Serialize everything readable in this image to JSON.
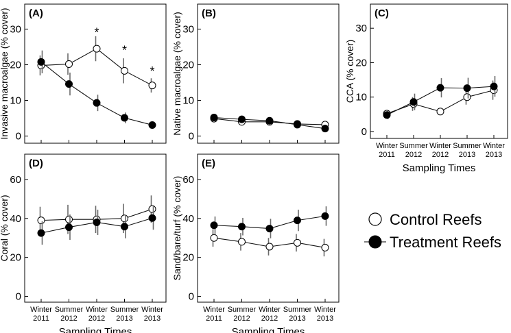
{
  "chart_data": [
    {
      "panel": "(A)",
      "type": "line",
      "ylabel": "Invasive macroalgae (% cover)",
      "xlabel": "",
      "ylim": [
        -2,
        37
      ],
      "yticks": [
        0,
        10,
        20,
        30
      ],
      "categories": [
        [
          "Winter",
          "2011"
        ],
        [
          "Summer",
          "2012"
        ],
        [
          "Winter",
          "2012"
        ],
        [
          "Summer",
          "2013"
        ],
        [
          "Winter",
          "2013"
        ]
      ],
      "show_categories": false,
      "series": [
        {
          "name": "Control Reefs",
          "marker": "open",
          "values": [
            19.8,
            20.2,
            24.5,
            18.3,
            14.2
          ],
          "errors": [
            2.8,
            3.0,
            3.5,
            3.5,
            2.0
          ]
        },
        {
          "name": "Treatment Reefs",
          "marker": "filled",
          "values": [
            20.8,
            14.6,
            9.3,
            5.1,
            3.1
          ],
          "errors": [
            3.2,
            3.2,
            2.3,
            1.5,
            0.9
          ]
        }
      ],
      "annotations": [
        {
          "text": "*",
          "category_index": 2,
          "y": 29.0
        },
        {
          "text": "*",
          "category_index": 3,
          "y": 24.0
        },
        {
          "text": "*",
          "category_index": 4,
          "y": 18.2
        }
      ]
    },
    {
      "panel": "(B)",
      "type": "line",
      "ylabel": "Native macroalgae (% cover)",
      "xlabel": "",
      "ylim": [
        -2,
        37
      ],
      "yticks": [
        0,
        10,
        20,
        30
      ],
      "categories": [
        [
          "Winter",
          "2011"
        ],
        [
          "Summer",
          "2012"
        ],
        [
          "Winter",
          "2012"
        ],
        [
          "Summer",
          "2013"
        ],
        [
          "Winter",
          "2013"
        ]
      ],
      "show_categories": false,
      "series": [
        {
          "name": "Control Reefs",
          "marker": "open",
          "values": [
            4.9,
            4.0,
            4.0,
            3.4,
            3.2
          ],
          "errors": [
            1.0,
            0.8,
            0.8,
            0.6,
            0.6
          ]
        },
        {
          "name": "Treatment Reefs",
          "marker": "filled",
          "values": [
            5.2,
            4.7,
            4.3,
            3.2,
            2.1
          ],
          "errors": [
            1.0,
            0.9,
            0.8,
            0.6,
            0.5
          ]
        }
      ],
      "annotations": []
    },
    {
      "panel": "(C)",
      "type": "line",
      "ylabel": "CCA (% cover)",
      "xlabel": "Sampling Times",
      "ylim": [
        -2,
        37
      ],
      "yticks": [
        0,
        10,
        20,
        30
      ],
      "categories": [
        [
          "Winter",
          "2011"
        ],
        [
          "Summer",
          "2012"
        ],
        [
          "Winter",
          "2012"
        ],
        [
          "Summer",
          "2013"
        ],
        [
          "Winter",
          "2013"
        ]
      ],
      "show_categories": true,
      "series": [
        {
          "name": "Control Reefs",
          "marker": "open",
          "values": [
            5.2,
            8.0,
            5.8,
            10.0,
            12.0
          ],
          "errors": [
            1.0,
            2.0,
            0.8,
            2.2,
            2.8
          ]
        },
        {
          "name": "Treatment Reefs",
          "marker": "filled",
          "values": [
            4.8,
            8.6,
            12.7,
            12.6,
            13.1
          ],
          "errors": [
            1.2,
            2.4,
            2.8,
            3.0,
            3.0
          ]
        }
      ],
      "annotations": []
    },
    {
      "panel": "(D)",
      "type": "line",
      "ylabel": "Coral (% cover)",
      "xlabel": "Sampling Times",
      "ylim": [
        -3,
        73
      ],
      "yticks": [
        0,
        20,
        40,
        60
      ],
      "categories": [
        [
          "Winter",
          "2011"
        ],
        [
          "Summer",
          "2012"
        ],
        [
          "Winter",
          "2012"
        ],
        [
          "Summer",
          "2013"
        ],
        [
          "Winter",
          "2013"
        ]
      ],
      "show_categories": true,
      "series": [
        {
          "name": "Control Reefs",
          "marker": "open",
          "values": [
            39.0,
            39.5,
            39.5,
            40.0,
            44.8
          ],
          "errors": [
            7.0,
            7.5,
            7.0,
            7.5,
            7.0
          ]
        },
        {
          "name": "Treatment Reefs",
          "marker": "filled",
          "values": [
            32.5,
            35.5,
            38.0,
            35.8,
            40.2
          ],
          "errors": [
            6.0,
            6.5,
            6.5,
            6.0,
            6.0
          ]
        }
      ],
      "annotations": []
    },
    {
      "panel": "(E)",
      "type": "line",
      "ylabel": "Sand/bare/turf (% cover)",
      "xlabel": "Sampling Times",
      "ylim": [
        -3,
        73
      ],
      "yticks": [
        0,
        20,
        40,
        60
      ],
      "categories": [
        [
          "Winter",
          "2011"
        ],
        [
          "Summer",
          "2012"
        ],
        [
          "Winter",
          "2012"
        ],
        [
          "Summer",
          "2013"
        ],
        [
          "Winter",
          "2013"
        ]
      ],
      "show_categories": true,
      "series": [
        {
          "name": "Control Reefs",
          "marker": "open",
          "values": [
            30.0,
            28.0,
            25.5,
            27.5,
            25.0
          ],
          "errors": [
            4.5,
            4.5,
            4.5,
            4.5,
            4.5
          ]
        },
        {
          "name": "Treatment Reefs",
          "marker": "filled",
          "values": [
            36.5,
            35.8,
            34.8,
            39.0,
            41.2
          ],
          "errors": [
            4.5,
            4.5,
            5.0,
            5.5,
            5.0
          ]
        }
      ],
      "annotations": []
    }
  ],
  "legend": {
    "items": [
      {
        "label": "Control Reefs",
        "marker": "open"
      },
      {
        "label": "Treatment Reefs",
        "marker": "filled"
      }
    ]
  }
}
